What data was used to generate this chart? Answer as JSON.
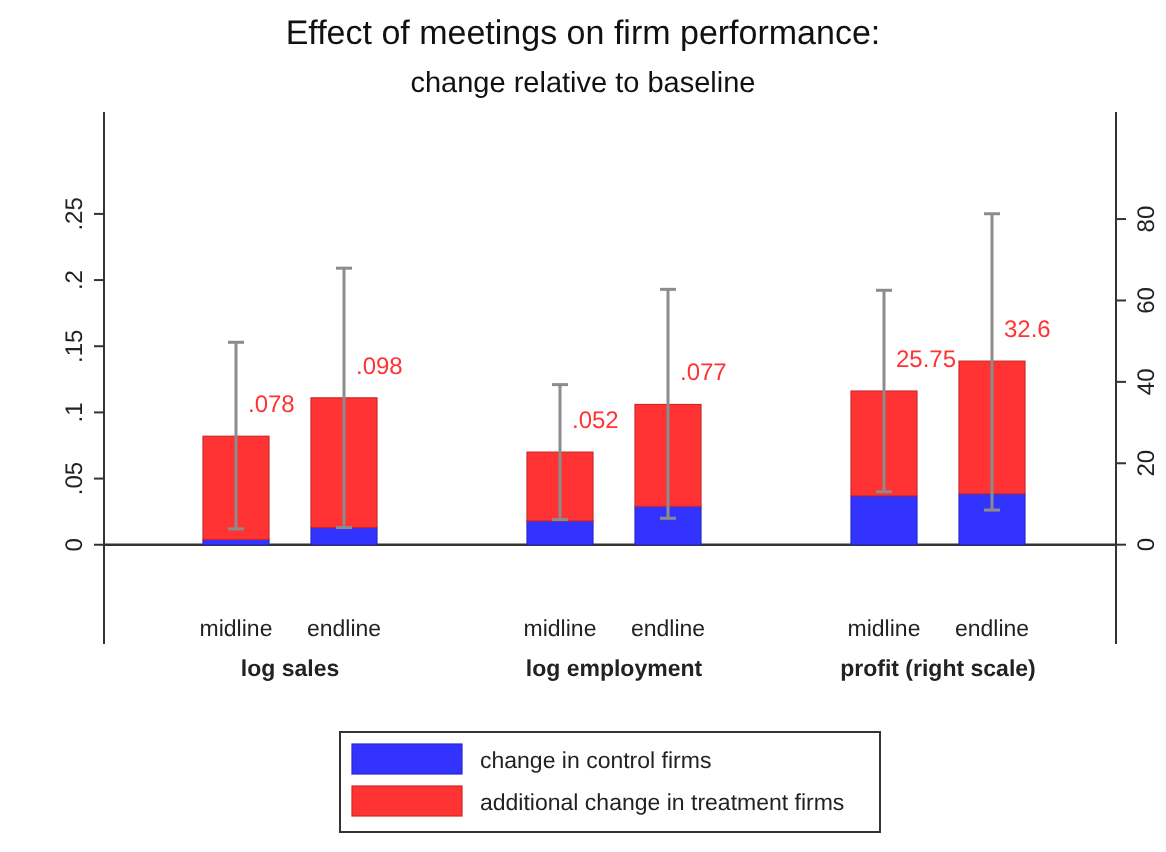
{
  "chart_data": {
    "type": "bar",
    "title": "Effect of meetings on firm performance:",
    "subtitle": "change relative to baseline",
    "categories": [
      "midline",
      "endline",
      "midline",
      "endline",
      "midline",
      "endline"
    ],
    "annotations": [
      "log sales",
      "log employment",
      "profit (right scale)"
    ],
    "stacked": true,
    "series": [
      {
        "name": "change in control firms",
        "color": "#3333ff",
        "values": [
          0.004,
          0.013,
          0.018,
          0.029,
          null,
          null
        ]
      },
      {
        "name": "additional change in treatment firms",
        "color": "#ff3333",
        "values": [
          0.078,
          0.098,
          0.052,
          0.077,
          null,
          null
        ],
        "value_labels": [
          ".078",
          ".098",
          ".052",
          ".077",
          null,
          null
        ],
        "errors": [
          [
            0.012,
            0.153
          ],
          [
            0.013,
            0.209
          ],
          [
            0.019,
            0.121
          ],
          [
            0.02,
            0.193
          ],
          null,
          null
        ]
      },
      {
        "color": "#3333ff",
        "axis": "y2",
        "values": [
          null,
          null,
          null,
          null,
          12,
          12.5
        ]
      },
      {
        "color": "#ff3333",
        "axis": "y2",
        "values": [
          null,
          null,
          null,
          null,
          25.75,
          32.6
        ],
        "value_labels": [
          null,
          null,
          null,
          null,
          "25.75",
          "32.6"
        ],
        "errors": [
          null,
          null,
          null,
          null,
          [
            13,
            62.5
          ],
          [
            8.5,
            81.3
          ]
        ]
      }
    ],
    "ylim": [
      -0.075,
      0.327
    ],
    "yticks": [
      0,
      {
        "value": 0.05,
        "label": ".05"
      },
      {
        "value": 0.1,
        "label": ".1"
      },
      {
        "value": 0.15,
        "label": ".15"
      },
      {
        "value": 0.2,
        "label": ".2"
      },
      {
        "value": 0.25,
        "label": ".25"
      }
    ],
    "y2lim": [
      -24.4,
      106.3
    ],
    "y2ticks": [
      0,
      20,
      40,
      60,
      80
    ],
    "legend": "bottom"
  }
}
